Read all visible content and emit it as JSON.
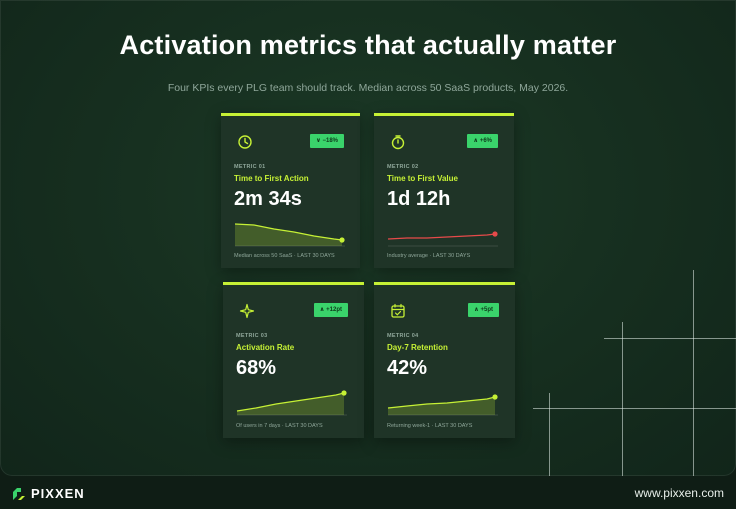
{
  "title": "Activation metrics that actually matter",
  "subtitle": "Four KPIs every PLG team should track. Median across 50 SaaS products, May 2026.",
  "colors": {
    "accent": "#c6f135",
    "badge": "#3ad36b",
    "down_marker": "#e64a4a"
  },
  "cards": [
    {
      "icon": "dashboard-gauge-icon",
      "badge": "∨ −18%",
      "eyebrow": "METRIC 01",
      "label": "Time to First Action",
      "value": "2m 34s",
      "footer": "Median across 50 SaaS · LAST 30 DAYS"
    },
    {
      "icon": "stopwatch-icon",
      "badge": "∧ +6%",
      "eyebrow": "METRIC 02",
      "label": "Time to First Value",
      "value": "1d 12h",
      "footer": "Industry average · LAST 30 DAYS"
    },
    {
      "icon": "sparkle-icon",
      "badge": "∧ +12pt",
      "eyebrow": "METRIC 03",
      "label": "Activation Rate",
      "value": "68%",
      "footer": "Of users in 7 days · LAST 30 DAYS"
    },
    {
      "icon": "calendar-check-icon",
      "badge": "∧ +5pt",
      "eyebrow": "METRIC 04",
      "label": "Day-7 Retention",
      "value": "42%",
      "footer": "Returning week-1 · LAST 30 DAYS"
    }
  ],
  "footer": {
    "logo": "PIXXEN",
    "url": "www.pixxen.com"
  }
}
